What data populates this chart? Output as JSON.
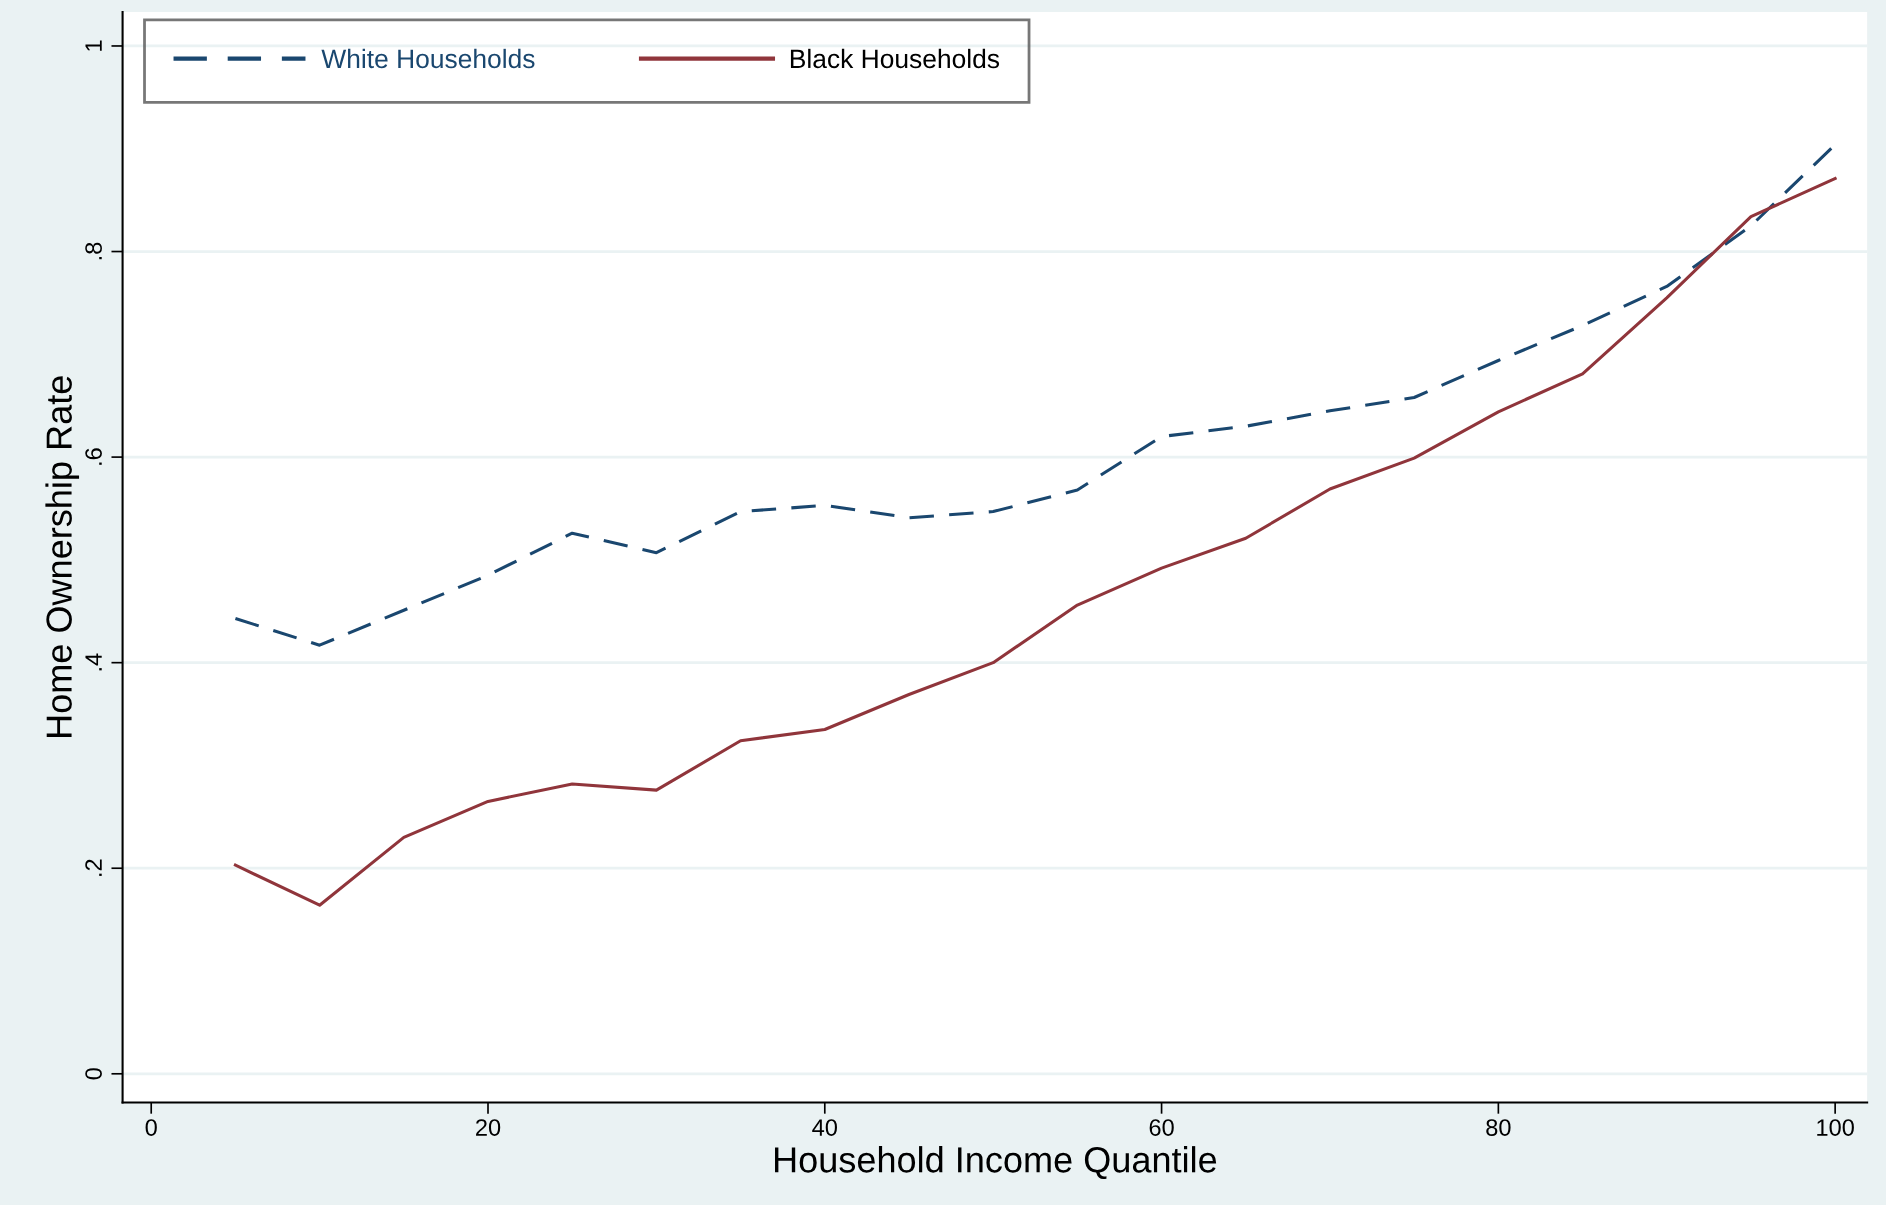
{
  "chart_data": {
    "type": "line",
    "xlabel": "Household Income Quantile",
    "ylabel": "Home Ownership Rate",
    "xlim": [
      -1.7,
      101.9
    ],
    "ylim": [
      -0.028,
      1.033
    ],
    "xticks": [
      0,
      20,
      40,
      60,
      80,
      100
    ],
    "yticks": [
      0,
      {
        "value": 0.2,
        "label": ".2"
      },
      {
        "value": 0.4,
        "label": ".4"
      },
      {
        "value": 0.6,
        "label": ".6"
      },
      {
        "value": 0.8,
        "label": ".8"
      },
      1
    ],
    "grid": "y",
    "legend": "top left",
    "marker": "none",
    "x": [
      5,
      10,
      15,
      20,
      25,
      30,
      35,
      40,
      45,
      50,
      55,
      60,
      65,
      70,
      75,
      80,
      85,
      90,
      95,
      100
    ],
    "series": [
      {
        "name": "White Households",
        "color": "#1a476f",
        "line_style": "dashed",
        "values": [
          0.443,
          0.417,
          0.451,
          0.485,
          0.526,
          0.507,
          0.547,
          0.553,
          0.541,
          0.547,
          0.568,
          0.62,
          0.63,
          0.645,
          0.658,
          0.694,
          0.728,
          0.766,
          0.825,
          0.904
        ]
      },
      {
        "name": "Black Households",
        "color": "#90353b",
        "line_style": "solid",
        "values": [
          0.203,
          0.164,
          0.23,
          0.265,
          0.282,
          0.276,
          0.324,
          0.335,
          0.369,
          0.4,
          0.456,
          0.492,
          0.521,
          0.569,
          0.599,
          0.644,
          0.681,
          0.755,
          0.834,
          0.871
        ]
      }
    ]
  }
}
